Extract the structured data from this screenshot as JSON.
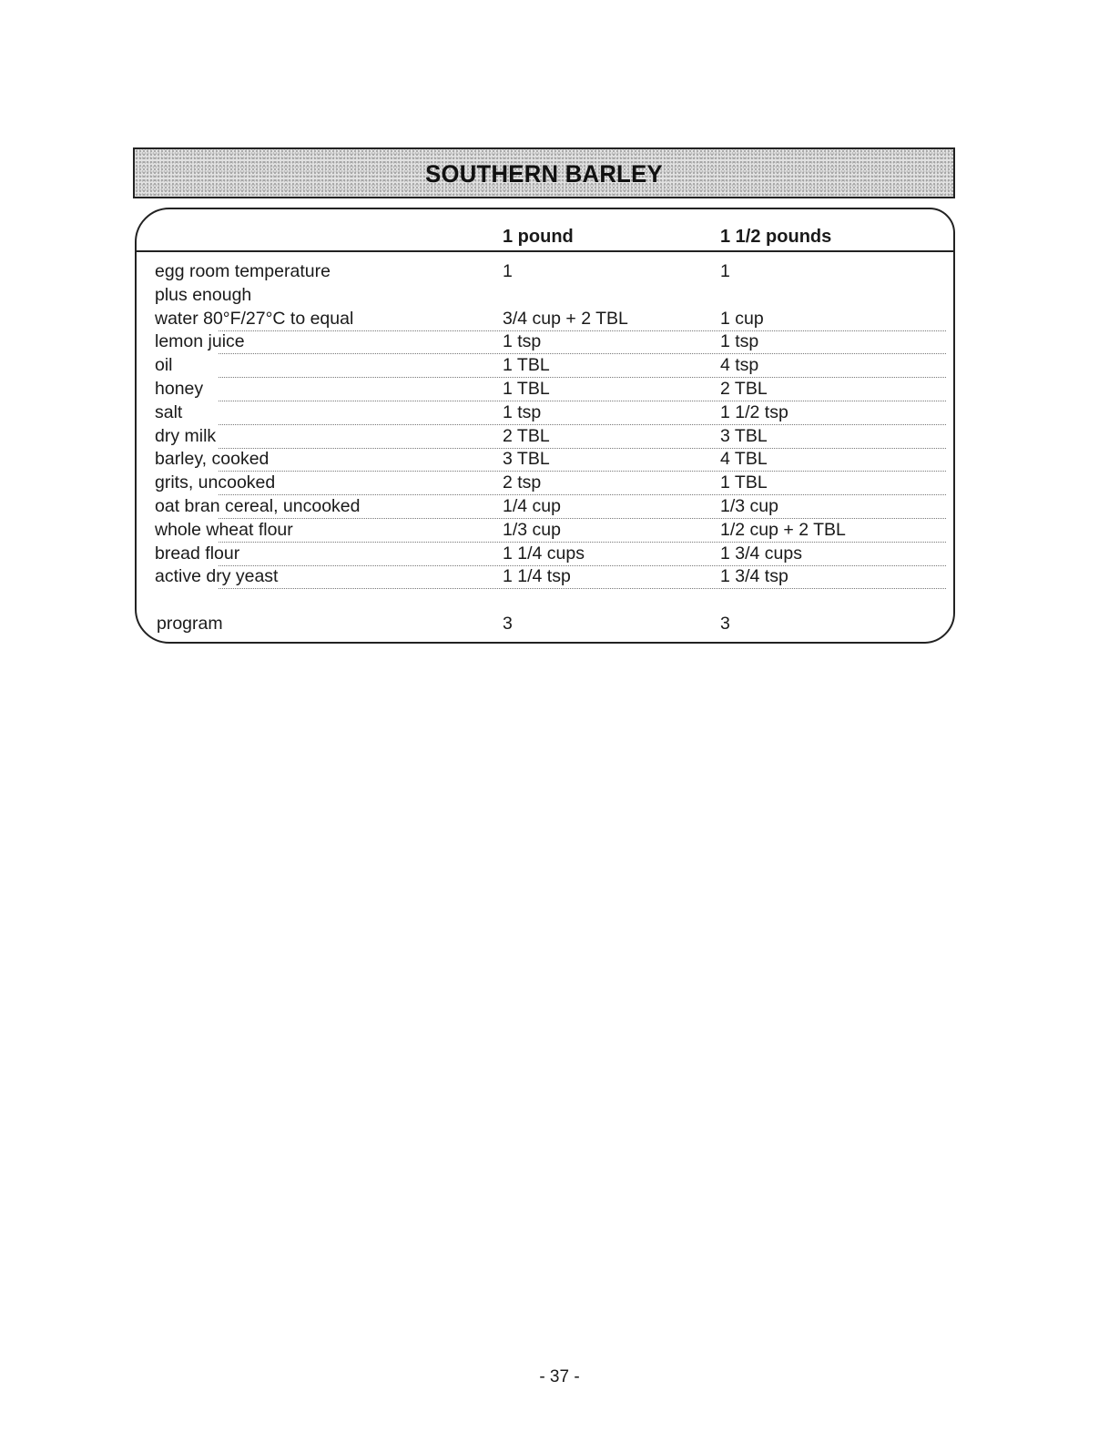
{
  "title": "SOUTHERN BARLEY",
  "columns": [
    "",
    "1 pound",
    "1 1/2 pounds"
  ],
  "rows": [
    [
      "egg room temperature",
      "1",
      "1"
    ],
    [
      "plus enough",
      "",
      ""
    ],
    [
      "water 80°F/27°C to equal",
      "3/4 cup + 2 TBL",
      "1 cup"
    ],
    [
      "lemon juice",
      "1 tsp",
      "1 tsp"
    ],
    [
      "oil",
      "1 TBL",
      "4 tsp"
    ],
    [
      "honey",
      "1 TBL",
      "2 TBL"
    ],
    [
      "salt",
      "1 tsp",
      "1 1/2 tsp"
    ],
    [
      "dry milk",
      "2 TBL",
      "3 TBL"
    ],
    [
      "barley, cooked",
      "3 TBL",
      "4 TBL"
    ],
    [
      "grits, uncooked",
      "2 tsp",
      "1 TBL"
    ],
    [
      "oat bran cereal, uncooked",
      "1/4 cup",
      "1/3 cup"
    ],
    [
      "whole wheat flour",
      "1/3 cup",
      "1/2 cup + 2 TBL"
    ],
    [
      "bread flour",
      "1 1/4 cups",
      "1 3/4 cups"
    ],
    [
      "active dry yeast",
      "1 1/4 tsp",
      "1 3/4 tsp"
    ]
  ],
  "program": [
    "program",
    "3",
    "3"
  ],
  "page_number": "- 37 -"
}
